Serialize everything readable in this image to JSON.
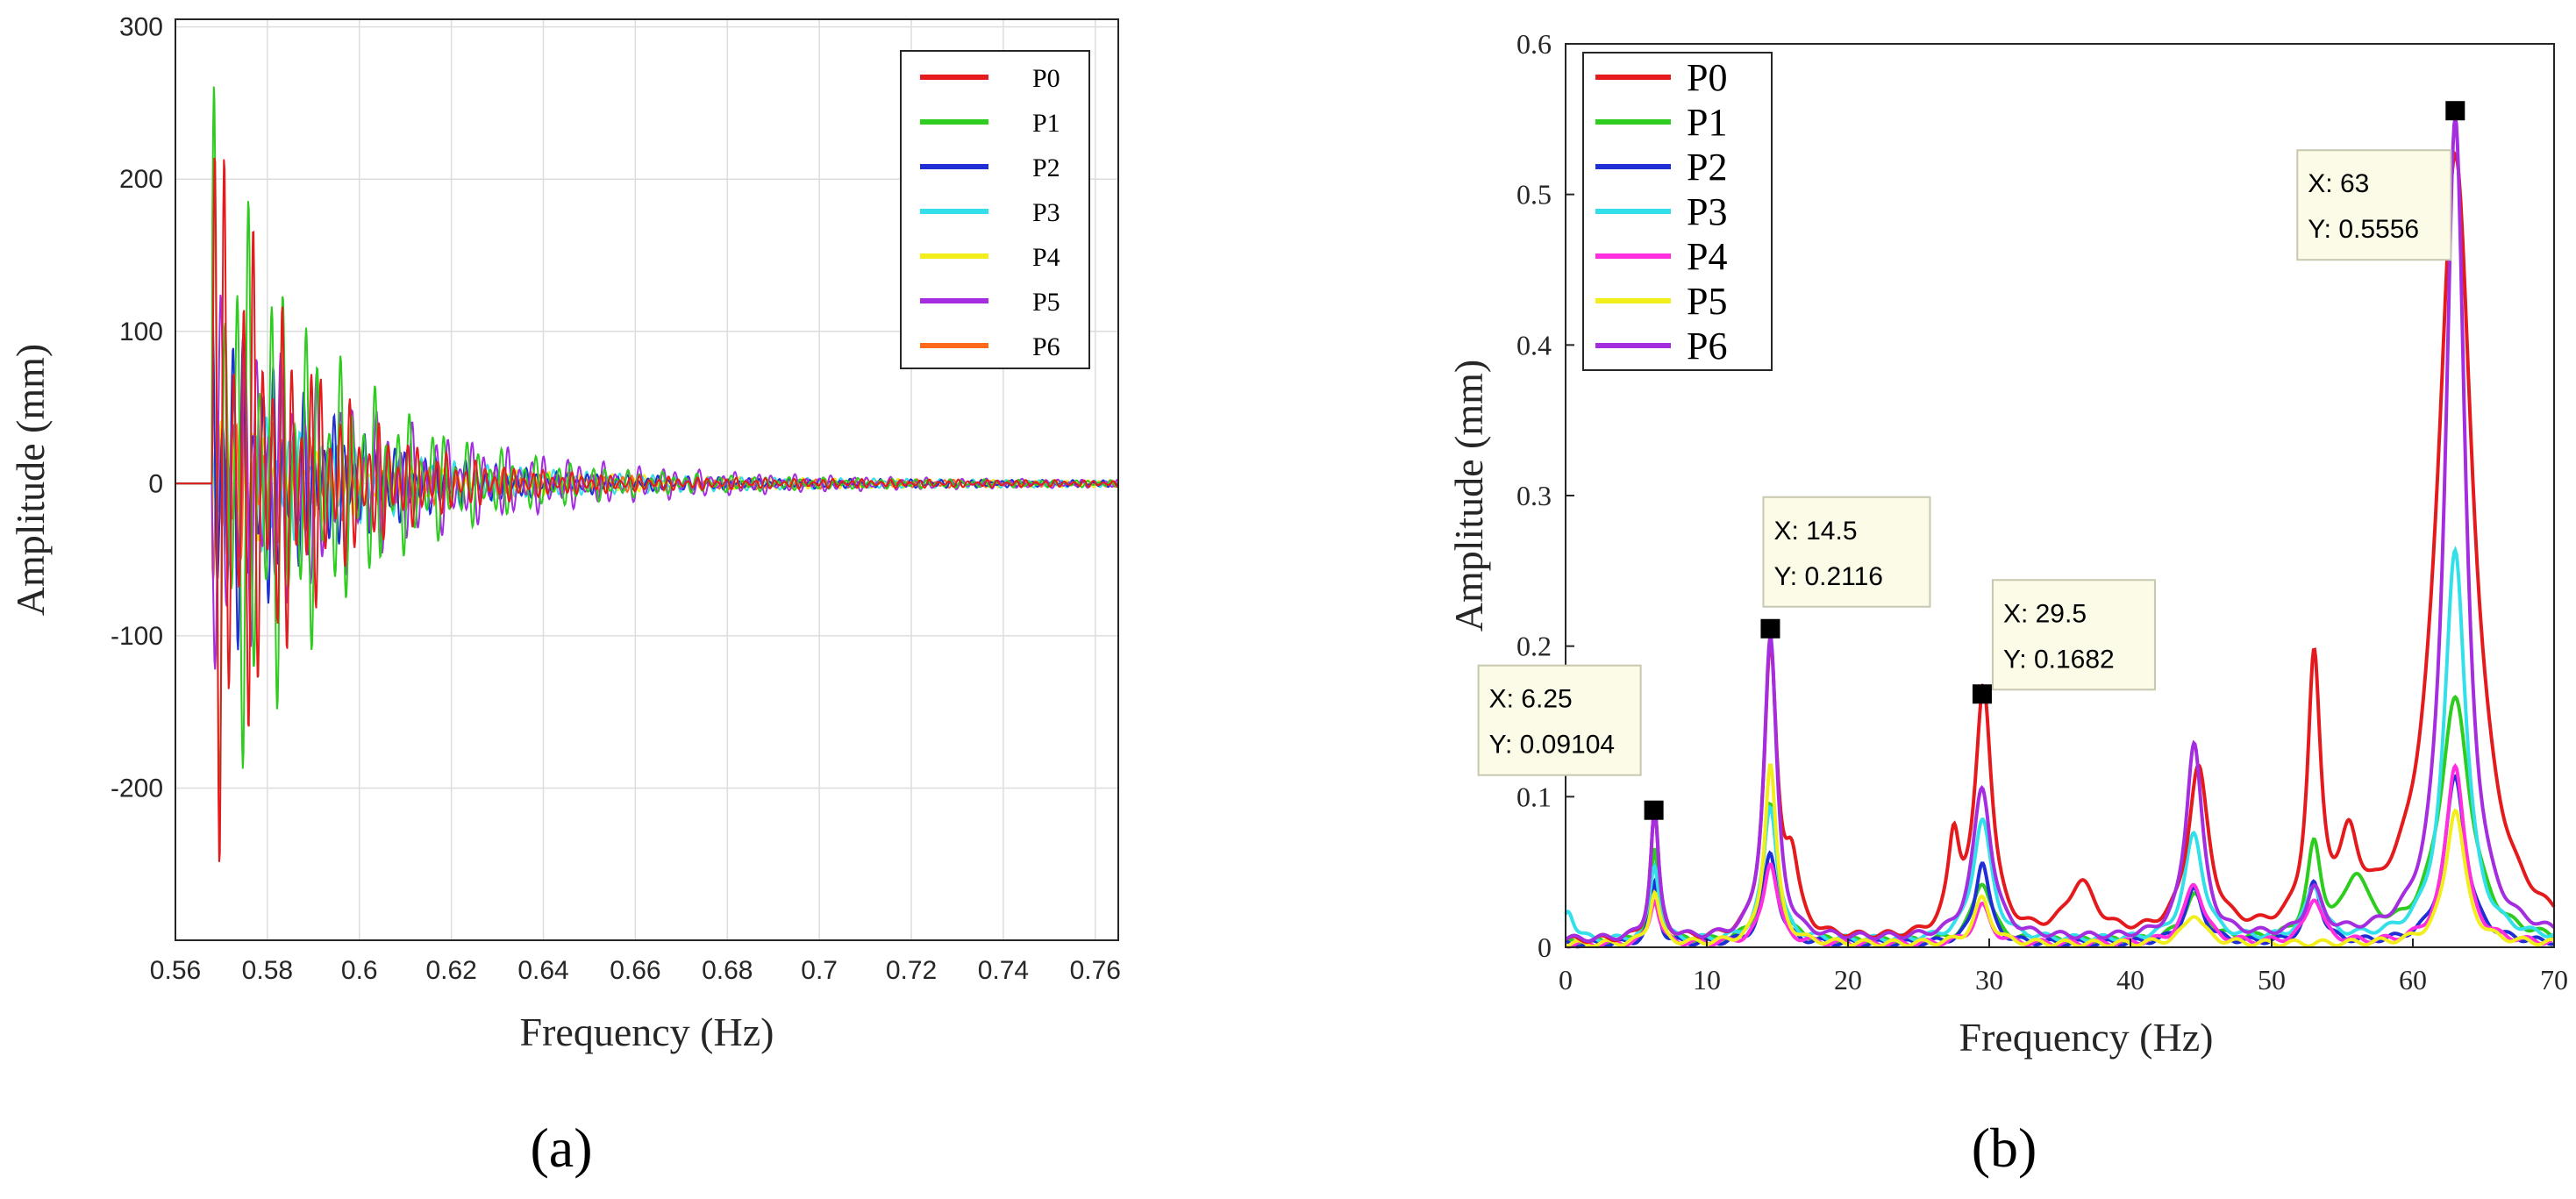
{
  "chart_data": [
    {
      "id": "a",
      "type": "line",
      "caption_text": "(a)",
      "xlabel": "Frequency (Hz)",
      "ylabel": "Amplitude (mm)",
      "xlim": [
        0.56,
        0.765
      ],
      "ylim": [
        -300,
        305
      ],
      "xticks": [
        "0.56",
        "0.58",
        "0.6",
        "0.62",
        "0.64",
        "0.66",
        "0.68",
        "0.7",
        "0.72",
        "0.74",
        "0.76"
      ],
      "yticks": [
        "-200",
        "-100",
        "0",
        "100",
        "200",
        "300"
      ],
      "grid": true,
      "legend_position": "top-right",
      "onset": 0.568,
      "series": [
        {
          "name": "P0",
          "color": "#e41a1c",
          "amp": 270,
          "period": 0.0021,
          "phase": 0.0,
          "decay": 0.018
        },
        {
          "name": "P1",
          "color": "#2ecc1f",
          "amp": 260,
          "period": 0.0025,
          "phase": 0.6,
          "decay": 0.024
        },
        {
          "name": "P2",
          "color": "#1f2fd6",
          "amp": 135,
          "period": 0.0022,
          "phase": 1.3,
          "decay": 0.022
        },
        {
          "name": "P3",
          "color": "#33e0ea",
          "amp": 60,
          "period": 0.0024,
          "phase": 2.0,
          "decay": 0.03
        },
        {
          "name": "P4",
          "color": "#f2ee1c",
          "amp": 45,
          "period": 0.0023,
          "phase": 2.6,
          "decay": 0.03
        },
        {
          "name": "P5",
          "color": "#a42de0",
          "amp": 130,
          "period": 0.0026,
          "phase": 3.3,
          "decay": 0.034
        },
        {
          "name": "P6",
          "color": "#ff6a1a",
          "amp": 60,
          "period": 0.002,
          "phase": 4.0,
          "decay": 0.026
        }
      ]
    },
    {
      "id": "b",
      "type": "line",
      "caption_text": "(b)",
      "xlabel": "Frequency (Hz)",
      "ylabel": "Amplitude (mm)",
      "xlim": [
        0,
        70
      ],
      "ylim": [
        0,
        0.6
      ],
      "xticks": [
        "0",
        "10",
        "20",
        "30",
        "40",
        "50",
        "60",
        "70"
      ],
      "yticks": [
        "0",
        "0.1",
        "0.2",
        "0.3",
        "0.4",
        "0.5",
        "0.6"
      ],
      "grid": false,
      "legend_position": "top-left",
      "series": [
        {
          "name": "P0",
          "color": "#e41a1c",
          "base": 0.004,
          "peaks": [
            [
              6.3,
              0.085,
              0.35
            ],
            [
              14.5,
              0.19,
              0.55
            ],
            [
              16,
              0.045,
              0.6
            ],
            [
              27.5,
              0.06,
              0.5
            ],
            [
              29.6,
              0.165,
              0.7
            ],
            [
              36.5,
              0.035,
              1.2
            ],
            [
              44.8,
              0.11,
              0.9
            ],
            [
              53,
              0.175,
              0.55
            ],
            [
              55.5,
              0.05,
              0.8
            ],
            [
              63,
              0.52,
              1.5
            ]
          ]
        },
        {
          "name": "P1",
          "color": "#2ecc1f",
          "base": 0.003,
          "peaks": [
            [
              6.3,
              0.06,
              0.35
            ],
            [
              14.5,
              0.09,
              0.6
            ],
            [
              29.5,
              0.04,
              0.8
            ],
            [
              44.5,
              0.03,
              0.9
            ],
            [
              53,
              0.06,
              0.6
            ],
            [
              56,
              0.04,
              1.0
            ],
            [
              63,
              0.16,
              1.3
            ]
          ]
        },
        {
          "name": "P2",
          "color": "#1f2fd6",
          "base": 0.002,
          "peaks": [
            [
              6.3,
              0.04,
              0.35
            ],
            [
              14.5,
              0.06,
              0.6
            ],
            [
              29.5,
              0.055,
              0.6
            ],
            [
              44.5,
              0.035,
              0.8
            ],
            [
              53,
              0.04,
              0.6
            ],
            [
              63,
              0.11,
              0.9
            ]
          ]
        },
        {
          "name": "P3",
          "color": "#33e0ea",
          "base": 0.004,
          "peaks": [
            [
              0.2,
              0.02,
              0.5
            ],
            [
              6.3,
              0.05,
              0.4
            ],
            [
              14.5,
              0.09,
              0.6
            ],
            [
              29.5,
              0.08,
              0.8
            ],
            [
              44.5,
              0.07,
              0.8
            ],
            [
              53,
              0.035,
              0.7
            ],
            [
              63,
              0.26,
              0.9
            ]
          ]
        },
        {
          "name": "P4",
          "color": "#ff2fe0",
          "base": 0.002,
          "peaks": [
            [
              6.3,
              0.03,
              0.4
            ],
            [
              14.5,
              0.055,
              0.6
            ],
            [
              29.5,
              0.025,
              0.7
            ],
            [
              44.5,
              0.04,
              0.8
            ],
            [
              53,
              0.03,
              0.7
            ],
            [
              63,
              0.12,
              0.8
            ]
          ]
        },
        {
          "name": "P5",
          "color": "#f2ee1c",
          "base": 0.002,
          "peaks": [
            [
              6.3,
              0.035,
              0.4
            ],
            [
              14.5,
              0.12,
              0.5
            ],
            [
              29.5,
              0.03,
              0.7
            ],
            [
              44.5,
              0.02,
              0.8
            ],
            [
              63,
              0.09,
              0.8
            ]
          ]
        },
        {
          "name": "P6",
          "color": "#a42de0",
          "base": 0.005,
          "peaks": [
            [
              6.3,
              0.085,
              0.35
            ],
            [
              14.5,
              0.2,
              0.55
            ],
            [
              29.5,
              0.1,
              0.8
            ],
            [
              44.5,
              0.13,
              0.7
            ],
            [
              53,
              0.03,
              0.7
            ],
            [
              63,
              0.545,
              0.85
            ]
          ]
        }
      ],
      "annotations": [
        {
          "x": 6.25,
          "y": 0.09104,
          "x_text": "X: 6.25",
          "y_text": "Y: 0.09104"
        },
        {
          "x": 14.5,
          "y": 0.2116,
          "x_text": "X: 14.5",
          "y_text": "Y: 0.2116"
        },
        {
          "x": 29.5,
          "y": 0.1682,
          "x_text": "X: 29.5",
          "y_text": "Y: 0.1682"
        },
        {
          "x": 63,
          "y": 0.5556,
          "x_text": "X: 63",
          "y_text": "Y: 0.5556"
        }
      ]
    }
  ]
}
